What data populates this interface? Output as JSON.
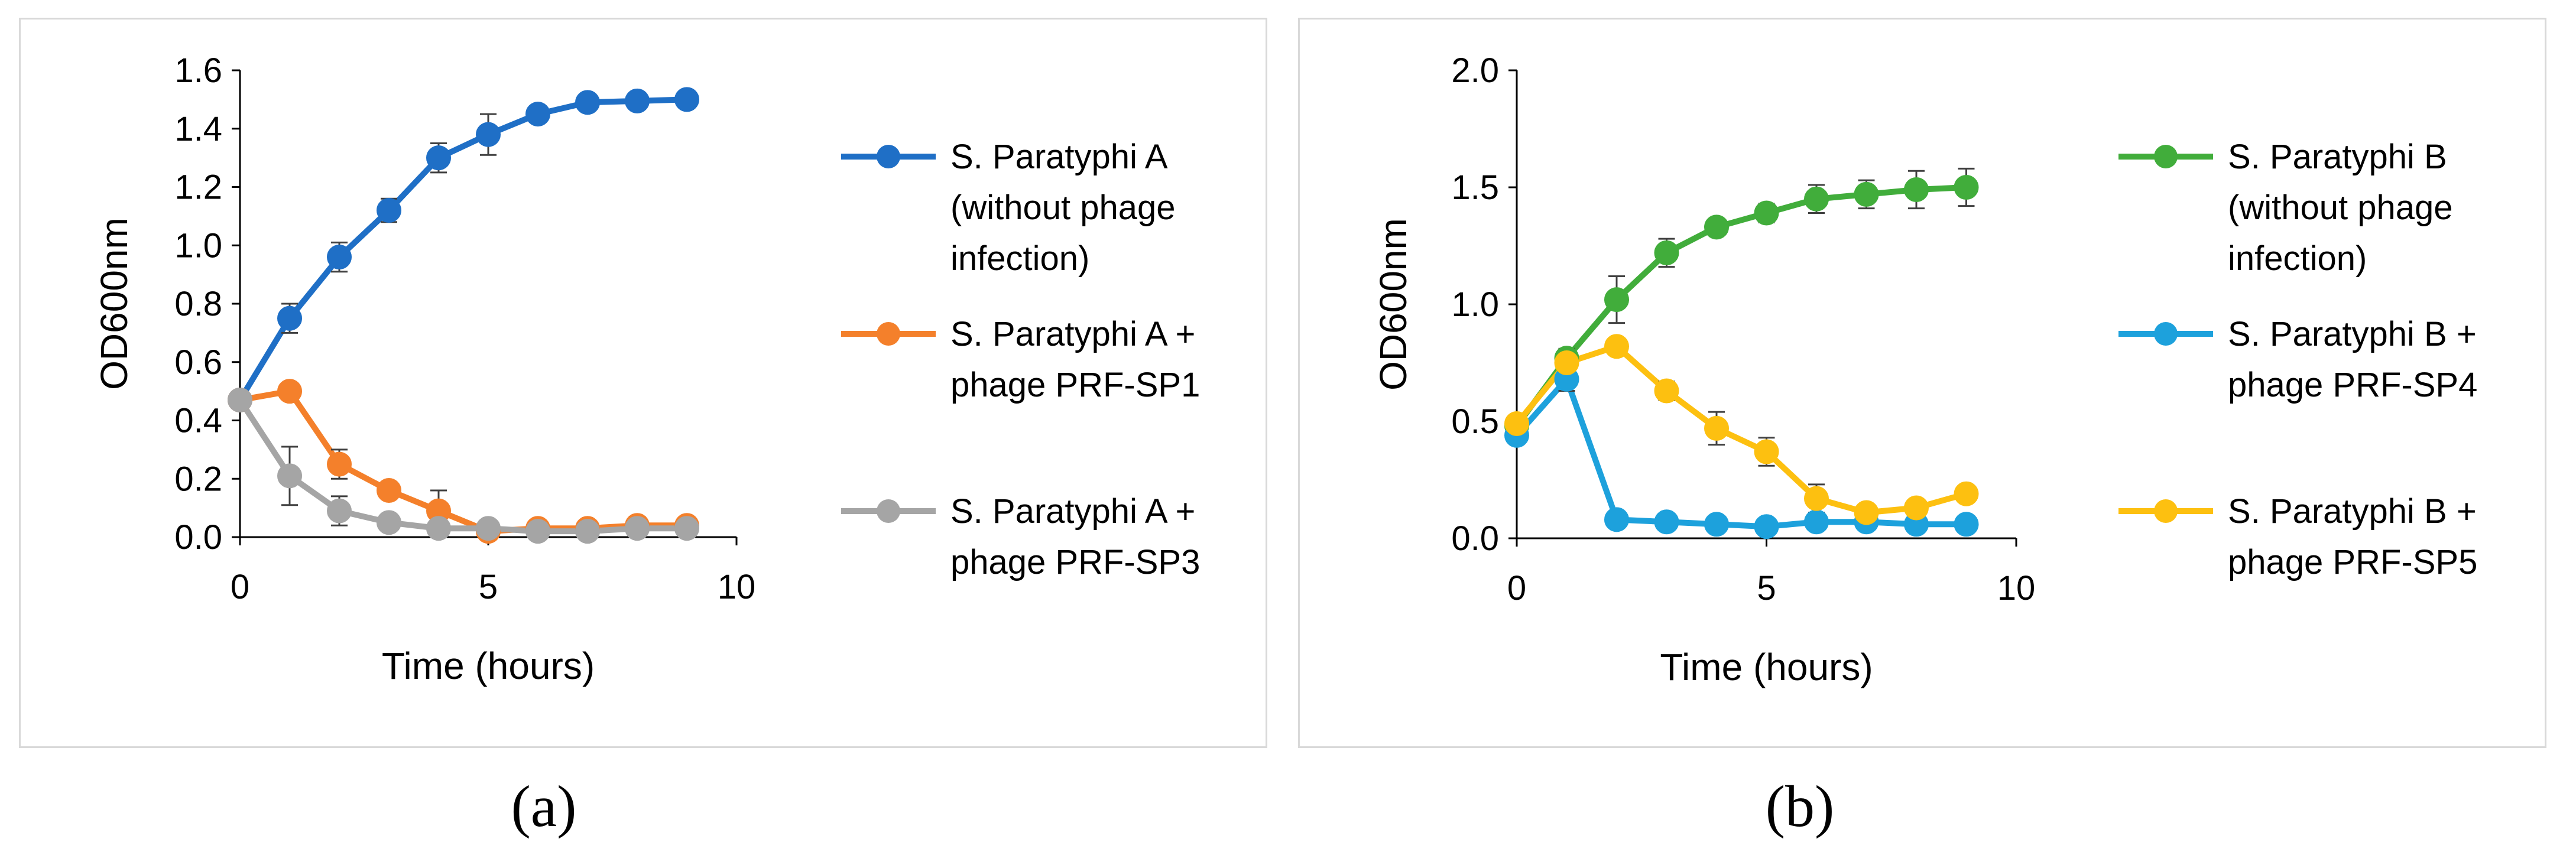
{
  "chart_data": [
    {
      "type": "line",
      "panel": "a",
      "caption": "(a)",
      "xlabel": "Time (hours)",
      "ylabel": "OD600nm",
      "xlim": [
        0,
        10
      ],
      "ylim": [
        0,
        1.6
      ],
      "x_ticks": [
        0,
        5,
        10
      ],
      "x_tick_labels": [
        "0",
        "5",
        "10"
      ],
      "y_ticks": [
        0,
        0.2,
        0.4,
        0.6,
        0.8,
        1.0,
        1.2,
        1.4,
        1.6
      ],
      "y_tick_labels": [
        "0.0",
        "0.2",
        "0.4",
        "0.6",
        "0.8",
        "1.0",
        "1.2",
        "1.4",
        "1.6"
      ],
      "grid": false,
      "legend_position": "right",
      "x": [
        0,
        1,
        2,
        3,
        4,
        5,
        6,
        7,
        8,
        9
      ],
      "series": [
        {
          "name": "S. Paratyphi A (without phage infection)",
          "legend_lines": [
            "S. Paratyphi A",
            "(without phage",
            "infection)"
          ],
          "color": "#1f6fc6",
          "values": [
            0.47,
            0.75,
            0.96,
            1.12,
            1.3,
            1.38,
            1.45,
            1.49,
            1.495,
            1.5
          ],
          "errors": [
            0.02,
            0.05,
            0.05,
            0.04,
            0.05,
            0.07,
            0.02,
            0.02,
            0.02,
            0.02
          ]
        },
        {
          "name": "S. Paratyphi A + phage PRF-SP1",
          "legend_lines": [
            "S. Paratyphi A +",
            "phage PRF-SP1"
          ],
          "color": "#f4802b",
          "values": [
            0.47,
            0.5,
            0.25,
            0.16,
            0.09,
            0.02,
            0.03,
            0.03,
            0.04,
            0.04
          ],
          "errors": [
            0.02,
            0.02,
            0.05,
            0.02,
            0.07,
            0.02,
            0.01,
            0.02,
            0.03,
            0.01
          ]
        },
        {
          "name": "S. Paratyphi A + phage PRF-SP3",
          "legend_lines": [
            "S. Paratyphi A +",
            "phage PRF-SP3"
          ],
          "color": "#a5a5a5",
          "values": [
            0.47,
            0.21,
            0.09,
            0.05,
            0.03,
            0.03,
            0.02,
            0.02,
            0.03,
            0.03
          ],
          "errors": [
            0.02,
            0.1,
            0.05,
            0.02,
            0.02,
            0.01,
            0.01,
            0.01,
            0.02,
            0.01
          ]
        }
      ]
    },
    {
      "type": "line",
      "panel": "b",
      "caption": "(b)",
      "xlabel": "Time (hours)",
      "ylabel": "OD600nm",
      "xlim": [
        0,
        10
      ],
      "ylim": [
        0,
        2.0
      ],
      "x_ticks": [
        0,
        5,
        10
      ],
      "x_tick_labels": [
        "0",
        "5",
        "10"
      ],
      "y_ticks": [
        0,
        0.5,
        1.0,
        1.5,
        2.0
      ],
      "y_tick_labels": [
        "0.0",
        "0.5",
        "1.0",
        "1.5",
        "2.0"
      ],
      "grid": false,
      "legend_position": "right",
      "x": [
        0,
        1,
        2,
        3,
        4,
        5,
        6,
        7,
        8,
        9
      ],
      "series": [
        {
          "name": "S. Paratyphi B (without phage infection)",
          "legend_lines": [
            "S. Paratyphi B",
            "(without phage",
            "infection)"
          ],
          "color": "#41ad3b",
          "values": [
            0.48,
            0.77,
            1.02,
            1.22,
            1.33,
            1.39,
            1.45,
            1.47,
            1.49,
            1.5
          ],
          "errors": [
            0.03,
            0.04,
            0.1,
            0.06,
            0.03,
            0.04,
            0.06,
            0.06,
            0.08,
            0.08
          ]
        },
        {
          "name": "S. Paratyphi B + phage PRF-SP4",
          "legend_lines": [
            "S. Paratyphi B +",
            "phage PRF-SP4"
          ],
          "color": "#1da1dc",
          "values": [
            0.44,
            0.68,
            0.08,
            0.07,
            0.06,
            0.05,
            0.07,
            0.07,
            0.06,
            0.06
          ],
          "errors": [
            0.03,
            0.05,
            0.02,
            0.02,
            0.02,
            0.02,
            0.02,
            0.02,
            0.02,
            0.02
          ]
        },
        {
          "name": "S. Paratyphi B + phage PRF-SP5",
          "legend_lines": [
            "S. Paratyphi B +",
            "phage PRF-SP5"
          ],
          "color": "#fdc010",
          "values": [
            0.49,
            0.75,
            0.82,
            0.63,
            0.47,
            0.37,
            0.17,
            0.11,
            0.13,
            0.19
          ],
          "errors": [
            0.03,
            0.04,
            0.03,
            0.04,
            0.07,
            0.06,
            0.06,
            0.03,
            0.03,
            0.02
          ]
        }
      ]
    }
  ]
}
